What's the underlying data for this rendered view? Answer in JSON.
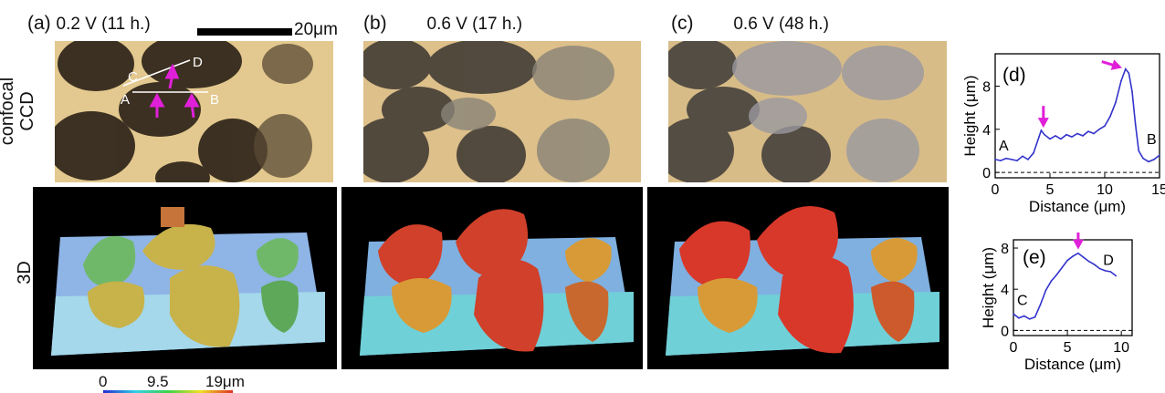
{
  "panels": [
    {
      "label": "(a)",
      "condition": "0.2 V (11 h.)"
    },
    {
      "label": "(b)",
      "condition": "0.6 V (17 h.)"
    },
    {
      "label": "(c)",
      "condition": "0.6 V (48 h.)"
    }
  ],
  "scalebar": {
    "label": "20μm"
  },
  "rows": {
    "confocal_line1": "confocal",
    "confocal_line2": "CCD",
    "three_d": "3D"
  },
  "ccd_markers": {
    "A": "A",
    "B": "B",
    "C": "C",
    "D": "D"
  },
  "colorbar": {
    "ticks": [
      "0",
      "9.5",
      "19μm"
    ],
    "colors": [
      "#1f2bd0",
      "#2fd0e8",
      "#3ad24a",
      "#f0e020",
      "#e03020"
    ]
  },
  "arrow_color": "#e020d8",
  "chart_data": [
    {
      "type": "line",
      "panel": "(d)",
      "xlabel": "Distance (μm)",
      "ylabel": "Height (μm)",
      "xlim": [
        0,
        15
      ],
      "ylim": [
        -0.5,
        11
      ],
      "xticks": [
        0,
        5,
        10,
        15
      ],
      "xtick_labels": [
        "0",
        "5",
        "10",
        "15"
      ],
      "yticks": [
        0,
        4,
        8
      ],
      "ytick_labels": [
        "0",
        "4",
        "8"
      ],
      "endpoint_labels": [
        "A",
        "B"
      ],
      "baseline_dashed": 0,
      "line_color": "#3333cc",
      "x": [
        0,
        0.5,
        1,
        1.5,
        2,
        2.5,
        3,
        3.5,
        4,
        4.2,
        4.5,
        5,
        5.5,
        6,
        6.5,
        7,
        7.5,
        8,
        8.5,
        9,
        9.5,
        10,
        10.5,
        11,
        11.5,
        11.9,
        12.2,
        12.5,
        12.8,
        13.1,
        13.5,
        14,
        14.5,
        15
      ],
      "y": [
        1.2,
        1.1,
        1.3,
        1.2,
        1.1,
        1.5,
        1.2,
        1.8,
        3.3,
        3.9,
        3.5,
        3.1,
        3.4,
        3.1,
        3.5,
        3.3,
        3.6,
        3.4,
        3.8,
        3.6,
        4.0,
        4.3,
        5.2,
        6.5,
        8.5,
        9.6,
        9.2,
        7.5,
        4.5,
        2.0,
        1.3,
        1.0,
        1.2,
        1.6
      ],
      "arrows_at": [
        [
          4.4,
          3.8
        ],
        [
          11.9,
          9.6
        ]
      ]
    },
    {
      "type": "line",
      "panel": "(e)",
      "xlabel": "Distance (μm)",
      "ylabel": "Height (μm)",
      "xlim": [
        0,
        11
      ],
      "ylim": [
        -0.5,
        8.8
      ],
      "xticks": [
        0,
        5,
        10
      ],
      "xtick_labels": [
        "0",
        "5",
        "10"
      ],
      "yticks": [
        0,
        4,
        8
      ],
      "ytick_labels": [
        "0",
        "4",
        "8"
      ],
      "endpoint_labels": [
        "C",
        "D"
      ],
      "baseline_dashed": 0,
      "line_color": "#3333cc",
      "x": [
        0,
        0.5,
        1,
        1.5,
        2,
        2.5,
        3,
        3.5,
        4,
        4.5,
        5,
        5.5,
        6,
        6.5,
        7,
        7.5,
        8,
        8.5,
        9,
        9.5
      ],
      "y": [
        1.6,
        1.2,
        1.4,
        1.1,
        1.3,
        2.5,
        3.9,
        4.8,
        5.4,
        6.1,
        6.8,
        7.2,
        7.5,
        7.1,
        6.7,
        6.4,
        6.0,
        5.8,
        5.7,
        5.3
      ],
      "arrows_at": [
        [
          6.0,
          7.5
        ]
      ]
    }
  ]
}
